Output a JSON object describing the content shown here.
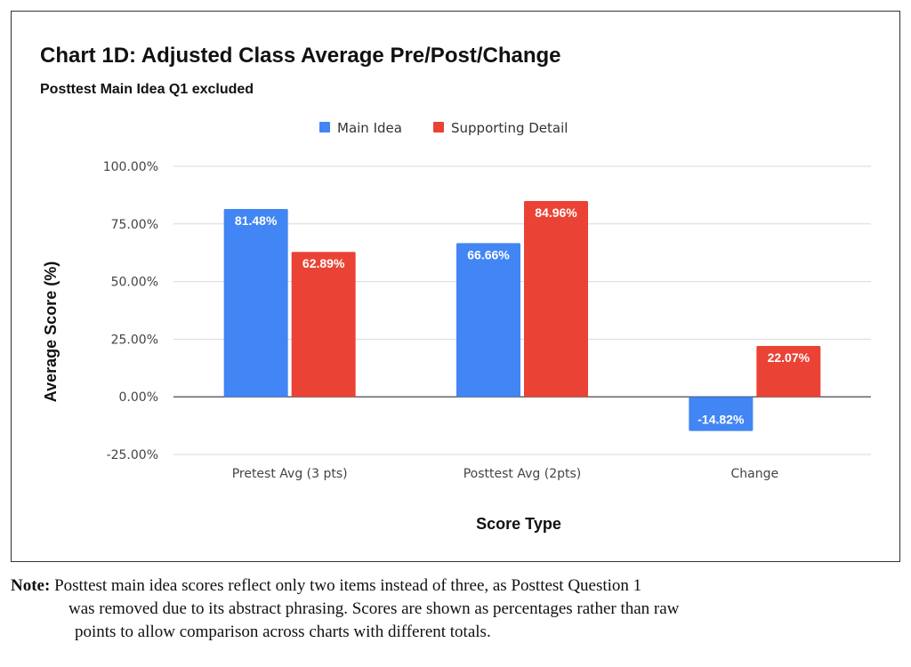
{
  "chart_data": {
    "type": "bar",
    "title": "Chart 1D: Adjusted Class Average Pre/Post/Change",
    "subtitle": "Posttest Main Idea Q1 excluded",
    "xlabel": "Score Type",
    "ylabel": "Average Score (%)",
    "categories": [
      "Pretest Avg (3 pts)",
      "Posttest Avg (2pts)",
      "Change"
    ],
    "series": [
      {
        "name": "Main Idea",
        "color": "#4285f4",
        "values": [
          81.48,
          66.66,
          -14.82
        ],
        "labels": [
          "81.48%",
          "66.66%",
          "-14.82%"
        ]
      },
      {
        "name": "Supporting Detail",
        "color": "#ea4335",
        "values": [
          62.89,
          84.96,
          22.07
        ],
        "labels": [
          "62.89%",
          "84.96%",
          "22.07%"
        ]
      }
    ],
    "ylim": [
      -25,
      100
    ],
    "yticks": [
      100,
      75,
      50,
      25,
      0,
      -25
    ],
    "ytick_labels": [
      "100.00%",
      "75.00%",
      "50.00%",
      "25.00%",
      "0.00%",
      "-25.00%"
    ],
    "grid": true,
    "legend": "top-center"
  },
  "note": {
    "lead": "Note:",
    "line1": "Posttest main idea scores reflect only two items instead of three, as Posttest Question 1",
    "line2": "was removed due to its abstract phrasing. Scores are shown as percentages rather than raw",
    "line3": "points to allow comparison across charts with different totals."
  }
}
